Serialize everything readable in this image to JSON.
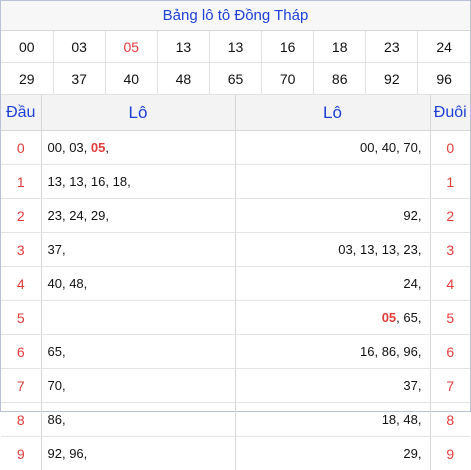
{
  "title": "Bảng lô tô Đồng Tháp",
  "number_rows": [
    [
      "00",
      "03",
      "05",
      "13",
      "13",
      "16",
      "18",
      "23",
      "24"
    ],
    [
      "29",
      "37",
      "40",
      "48",
      "65",
      "70",
      "86",
      "92",
      "96"
    ]
  ],
  "highlight_number": "05",
  "headers": {
    "dau": "Đầu",
    "lo_left": "Lô",
    "lo_right": "Lô",
    "duoi": "Đuôi"
  },
  "rows": [
    {
      "dau": "0",
      "left": "00, 03, 05,",
      "right": "00, 40, 70,",
      "duoi": "0"
    },
    {
      "dau": "1",
      "left": "13, 13, 16, 18,",
      "right": "",
      "duoi": "1"
    },
    {
      "dau": "2",
      "left": "23, 24, 29,",
      "right": "92,",
      "duoi": "2"
    },
    {
      "dau": "3",
      "left": "37,",
      "right": "03, 13, 13, 23,",
      "duoi": "3"
    },
    {
      "dau": "4",
      "left": "40, 48,",
      "right": "24,",
      "duoi": "4"
    },
    {
      "dau": "5",
      "left": "",
      "right": "05, 65,",
      "duoi": "5"
    },
    {
      "dau": "6",
      "left": "65,",
      "right": "16, 86, 96,",
      "duoi": "6"
    },
    {
      "dau": "7",
      "left": "70,",
      "right": "37,",
      "duoi": "7"
    },
    {
      "dau": "8",
      "left": "86,",
      "right": "18, 48,",
      "duoi": "8"
    },
    {
      "dau": "9",
      "left": "92, 96,",
      "right": "29,",
      "duoi": "9"
    }
  ],
  "colors": {
    "title_blue": "#1e3fd6",
    "highlight_red": "#e23b3b"
  }
}
